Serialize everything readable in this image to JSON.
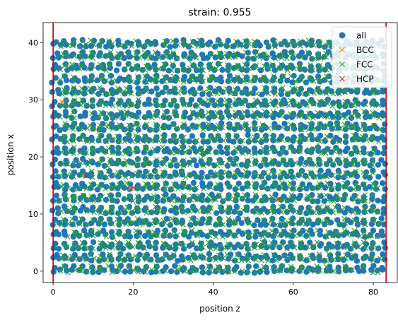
{
  "chart_data": {
    "type": "scatter",
    "title": "strain: 0.955",
    "xlabel": "position z",
    "ylabel": "position x",
    "xlim": [
      -2.5,
      86
    ],
    "ylim": [
      -2,
      43.5
    ],
    "xticks": [
      0,
      20,
      40,
      60,
      80
    ],
    "yticks": [
      0,
      10,
      20,
      30,
      40
    ],
    "grid": false,
    "legend_position": "top-right",
    "series": [
      {
        "name": "all",
        "marker": "circle",
        "color": "#1f77b4",
        "generated": true,
        "layers_y_start": 0,
        "layers_y_step": 2.08,
        "layers_count": 20,
        "x_range": [
          0,
          83.3
        ],
        "x_step": 1.62
      },
      {
        "name": "BCC",
        "marker": "x",
        "color": "#ff7f0e",
        "points": [
          [
            2.2,
            29.6
          ],
          [
            19.3,
            14.6
          ]
        ]
      },
      {
        "name": "FCC",
        "marker": "x",
        "color": "#2ca02c",
        "generated": true,
        "note_layers_same_as_all": true
      },
      {
        "name": "HCP",
        "marker": "x",
        "color": "#d62728",
        "points": [
          [
            56.2,
            12.6
          ],
          [
            8.3,
            16.7
          ],
          [
            20.0,
            14.6
          ]
        ]
      }
    ],
    "vlines": [
      {
        "x": 0.0,
        "color": "#c00000"
      },
      {
        "x": 83.2,
        "color": "#c00000"
      }
    ]
  }
}
